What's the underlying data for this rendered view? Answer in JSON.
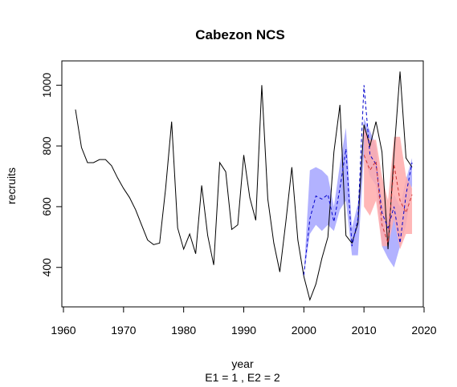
{
  "chart_data": {
    "type": "line",
    "title": "Cabezon NCS",
    "xlabel": "year",
    "subtitle": "E1 = 1 , E2 = 2",
    "ylabel": "recruits",
    "xlim": [
      1960,
      2020
    ],
    "ylim": [
      270,
      1080
    ],
    "x_ticks": [
      1960,
      1970,
      1980,
      1990,
      2000,
      2010,
      2020
    ],
    "y_ticks": [
      400,
      600,
      800,
      1000
    ],
    "grid": false,
    "legend": "none",
    "colors": {
      "observed": "#000000",
      "e1_band": "#aaaaff",
      "e1_line": "#0000cc",
      "e2_band": "#ffaaaa",
      "e2_line": "#cc3333"
    },
    "series": [
      {
        "role": "observed",
        "x": [
          1962,
          1963,
          1964,
          1965,
          1966,
          1967,
          1968,
          1969,
          1970,
          1971,
          1972,
          1973,
          1974,
          1975,
          1976,
          1977,
          1978,
          1979,
          1980,
          1981,
          1982,
          1983,
          1984,
          1985,
          1986,
          1987,
          1988,
          1989,
          1990,
          1991,
          1992,
          1993,
          1994,
          1995,
          1996,
          1997,
          1998,
          1999,
          2000,
          2001,
          2002,
          2003,
          2004,
          2005,
          2006,
          2007,
          2008,
          2009,
          2010,
          2011,
          2012,
          2013,
          2014,
          2015,
          2016,
          2017,
          2018
        ],
        "y": [
          920,
          795,
          745,
          745,
          755,
          755,
          735,
          695,
          660,
          630,
          590,
          540,
          490,
          475,
          480,
          660,
          880,
          530,
          460,
          510,
          445,
          670,
          505,
          408,
          745,
          715,
          525,
          540,
          770,
          630,
          555,
          1000,
          625,
          480,
          385,
          550,
          730,
          490,
          370,
          293,
          345,
          430,
          500,
          780,
          935,
          505,
          480,
          545,
          870,
          800,
          880,
          780,
          460,
          775,
          1045,
          760,
          730
        ]
      },
      {
        "role": "e1",
        "x": [
          2000,
          2001,
          2002,
          2003,
          2004,
          2005,
          2006,
          2007,
          2008,
          2009,
          2010,
          2011,
          2012,
          2013,
          2014,
          2015,
          2016,
          2017,
          2018
        ],
        "y": [
          375,
          560,
          635,
          625,
          640,
          550,
          660,
          790,
          470,
          560,
          1000,
          770,
          740,
          580,
          530,
          600,
          480,
          640,
          745
        ],
        "lower": [
          375,
          510,
          540,
          520,
          540,
          520,
          590,
          620,
          440,
          440,
          770,
          700,
          670,
          470,
          430,
          400,
          470,
          540,
          670
        ],
        "upper": [
          375,
          720,
          730,
          720,
          700,
          600,
          740,
          860,
          530,
          610,
          890,
          850,
          800,
          620,
          560,
          640,
          600,
          690,
          760
        ]
      },
      {
        "role": "e2",
        "x": [
          2010,
          2011,
          2012,
          2013,
          2014,
          2015,
          2016,
          2017,
          2018
        ],
        "y": [
          770,
          720,
          750,
          540,
          480,
          740,
          620,
          580,
          640
        ],
        "lower": [
          600,
          570,
          620,
          470,
          470,
          560,
          460,
          510,
          510
        ],
        "upper": [
          860,
          820,
          820,
          700,
          620,
          830,
          830,
          700,
          660
        ]
      }
    ]
  }
}
